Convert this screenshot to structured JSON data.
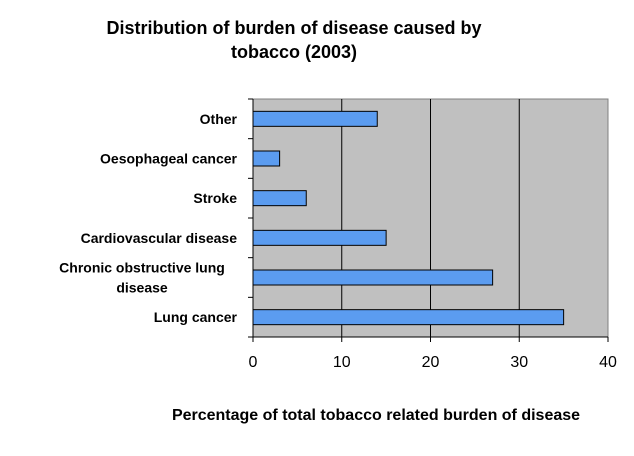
{
  "chart_data": {
    "type": "bar",
    "orientation": "horizontal",
    "title": "Distribution of burden of disease caused by tobacco (2003)",
    "title_lines": [
      "Distribution of burden of disease caused by",
      "tobacco (2003)"
    ],
    "xlabel": "Percentage  of total tobacco related burden of disease",
    "ylabel": "",
    "categories": [
      "Other",
      "Oesophageal cancer",
      "Stroke",
      "Cardiovascular disease",
      "Chronic obstructive lung disease",
      "Lung cancer"
    ],
    "category_lines": [
      [
        "Other"
      ],
      [
        "Oesophageal cancer"
      ],
      [
        "Stroke"
      ],
      [
        "Cardiovascular disease"
      ],
      [
        "Chronic obstructive lung",
        "disease"
      ],
      [
        "Lung cancer"
      ]
    ],
    "values": [
      14,
      3,
      6,
      15,
      27,
      35
    ],
    "xlim": [
      0,
      40
    ],
    "xticks": [
      0,
      10,
      20,
      30,
      40
    ],
    "grid": true,
    "legend": "none",
    "colors": {
      "bar": "#5b9cf0",
      "bar_border": "#000000",
      "plot_background": "#c0c0c0",
      "gridline": "#000000"
    }
  }
}
